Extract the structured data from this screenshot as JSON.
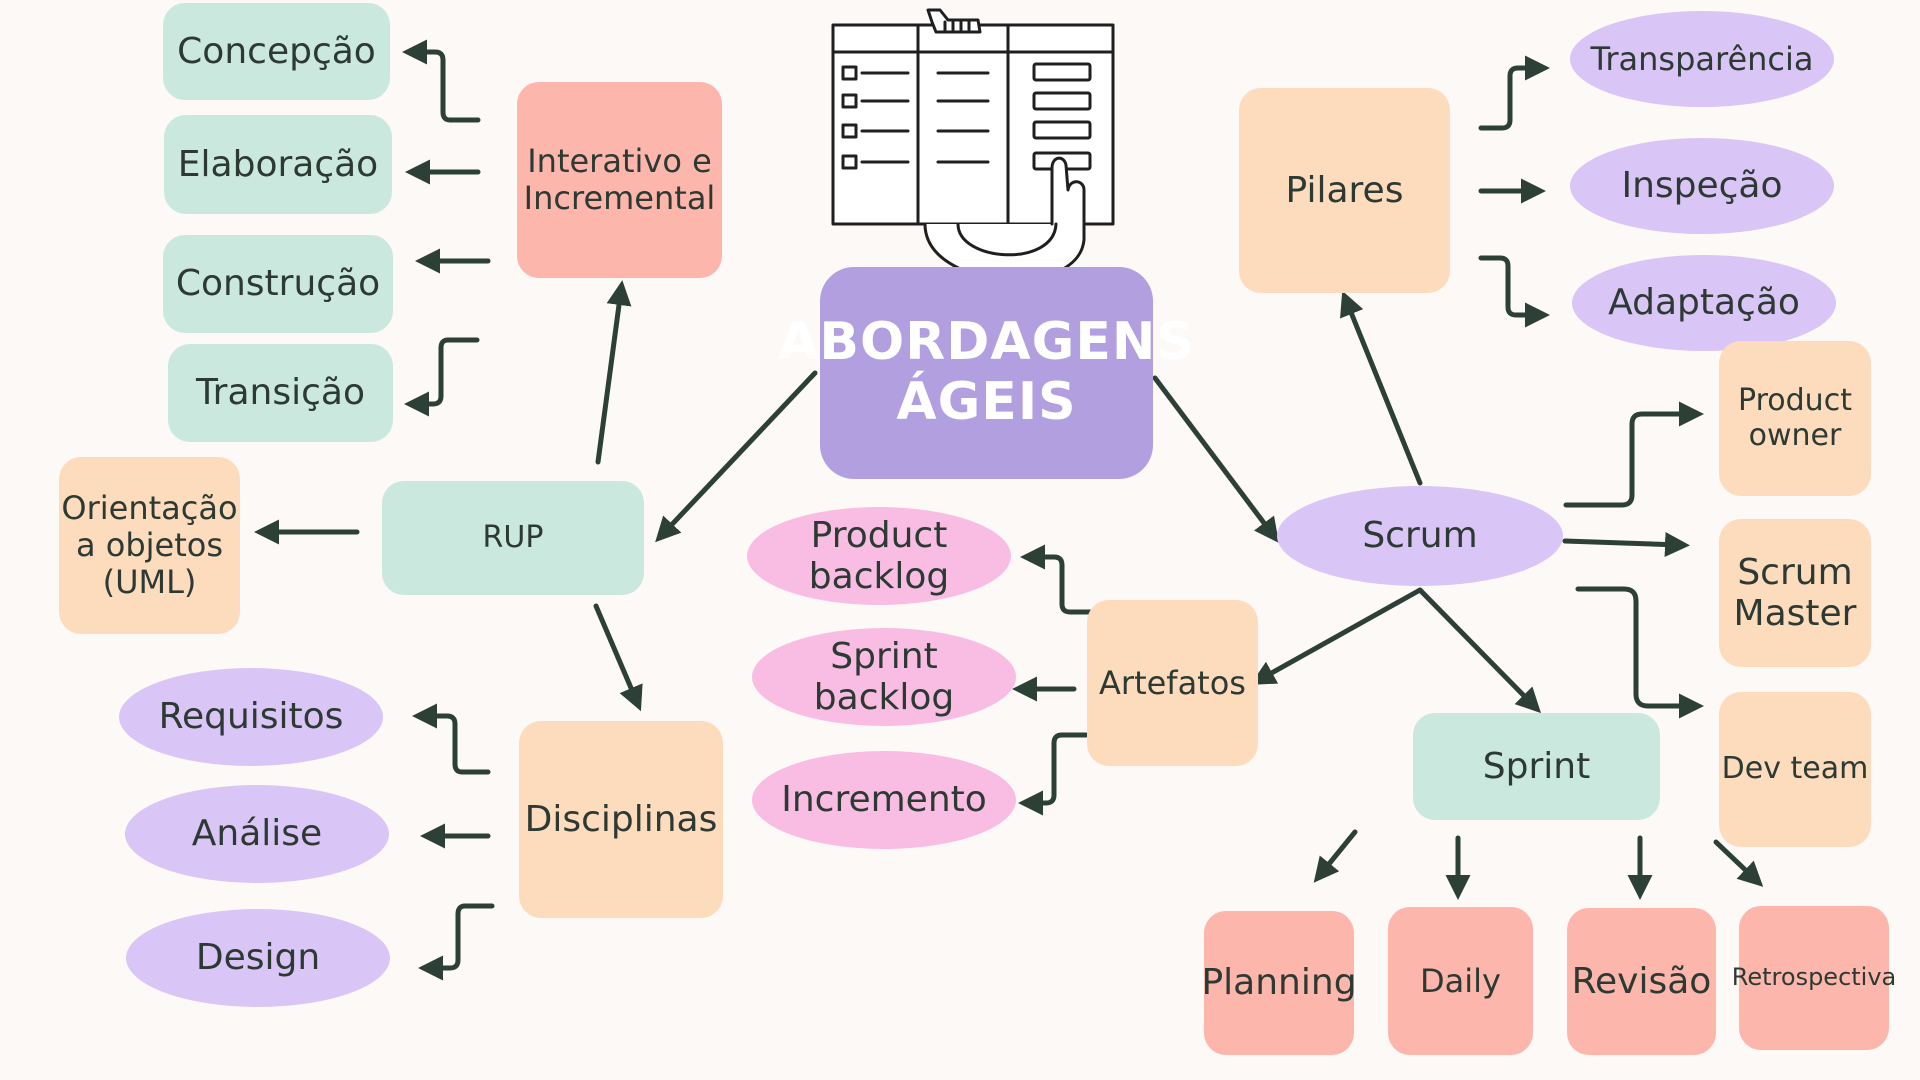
{
  "title": "ABORDAGENS ÁGEIS",
  "colors": {
    "background": "#fdf9f6",
    "center": "#b19fdf",
    "green": "#cbe8df",
    "peach": "#fddcbd",
    "coral": "#fdb6ab",
    "lilac": "#d9c5f6",
    "pink": "#f9bde3",
    "arrow": "#2d4038"
  },
  "illustration": {
    "icon": "kanban-board-hand-icon"
  },
  "rup": {
    "label": "RUP",
    "interativo": "Interativo e\nIncremental",
    "fases": [
      "Concepção",
      "Elaboração",
      "Construção",
      "Transição"
    ],
    "orientacao": "Orientação\na objetos\n(UML)",
    "disciplinas": "Disciplinas",
    "disciplinas_items": [
      "Requisitos",
      "Análise",
      "Design"
    ]
  },
  "scrum": {
    "label": "Scrum",
    "pilares": "Pilares",
    "pilares_items": [
      "Transparência",
      "Inspeção",
      "Adaptação"
    ],
    "papeis": [
      "Product\nowner",
      "Scrum\nMaster",
      "Dev team"
    ],
    "artefatos": "Artefatos",
    "artefatos_items": [
      "Product\nbacklog",
      "Sprint\nbacklog",
      "Incremento"
    ],
    "sprint": "Sprint",
    "eventos": [
      "Planning",
      "Daily",
      "Revisão",
      "Retrospectiva"
    ]
  }
}
